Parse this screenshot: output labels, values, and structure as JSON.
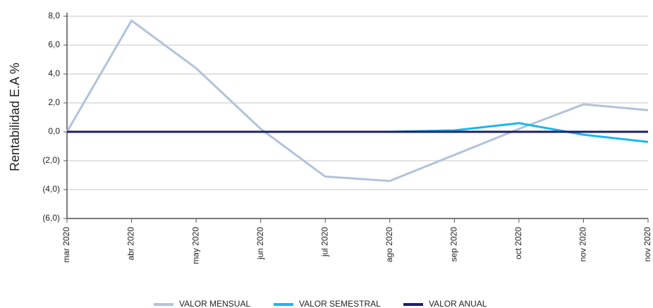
{
  "chart_data": {
    "type": "line",
    "y_label": "Rentabilidad E.A %",
    "categories": [
      "mar 2020",
      "abr 2020",
      "may 2020",
      "jun 2020",
      "jul 2020",
      "ago 2020",
      "sep 2020",
      "oct 2020",
      "nov 2020",
      "nov 2020"
    ],
    "series": [
      {
        "name": "VALOR MENSUAL",
        "color": "#b1c3dc",
        "values": [
          0,
          7.7,
          4.4,
          0.2,
          -3.1,
          -3.4,
          -1.6,
          0.2,
          1.9,
          1.5
        ]
      },
      {
        "name": "VALOR SEMESTRAL",
        "color": "#19b7ef",
        "values": [
          0,
          0,
          0,
          0,
          0,
          0,
          0.1,
          0.6,
          -0.2,
          -0.7
        ]
      },
      {
        "name": "VALOR ANUAL",
        "color": "#1b1f6b",
        "values": [
          0,
          0,
          0,
          0,
          0,
          0,
          0,
          0,
          0,
          0
        ]
      }
    ],
    "ylim": [
      -6,
      8
    ],
    "yticks": [
      {
        "value": -6,
        "label": "(6,0)"
      },
      {
        "value": -4,
        "label": "(4,0)"
      },
      {
        "value": -2,
        "label": "(2,0)"
      },
      {
        "value": 0,
        "label": "0,0"
      },
      {
        "value": 2,
        "label": "2,0"
      },
      {
        "value": 4,
        "label": "4,0"
      },
      {
        "value": 6,
        "label": "6,0"
      },
      {
        "value": 8,
        "label": "8,0"
      }
    ],
    "grid": true
  }
}
